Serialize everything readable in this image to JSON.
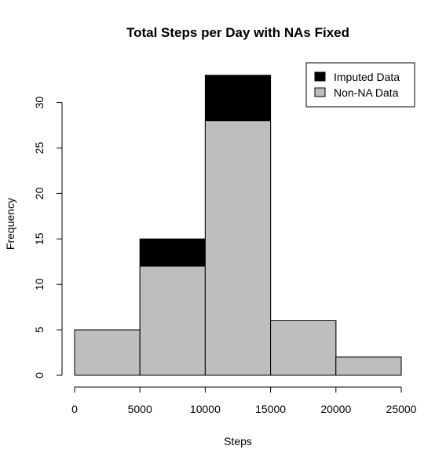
{
  "chart_data": {
    "type": "bar",
    "subtype": "stacked-histogram",
    "title": "Total Steps per Day with NAs Fixed",
    "xlabel": "Steps",
    "ylabel": "Frequency",
    "bins": [
      {
        "from": 0,
        "to": 5000
      },
      {
        "from": 5000,
        "to": 10000
      },
      {
        "from": 10000,
        "to": 15000
      },
      {
        "from": 15000,
        "to": 20000
      },
      {
        "from": 20000,
        "to": 25000
      }
    ],
    "series": [
      {
        "name": "Imputed Data",
        "color": "#000000",
        "values": [
          5,
          15,
          33,
          6,
          2
        ]
      },
      {
        "name": "Non-NA Data",
        "color": "#bebebe",
        "values": [
          5,
          12,
          28,
          6,
          2
        ]
      }
    ],
    "xlim": [
      0,
      25000
    ],
    "ylim": [
      0,
      33
    ],
    "x_ticks": [
      "0",
      "5000",
      "10000",
      "15000",
      "20000",
      "25000"
    ],
    "y_ticks": [
      "0",
      "5",
      "10",
      "15",
      "20",
      "25",
      "30"
    ],
    "legend_position": "top-right",
    "grid": false
  }
}
